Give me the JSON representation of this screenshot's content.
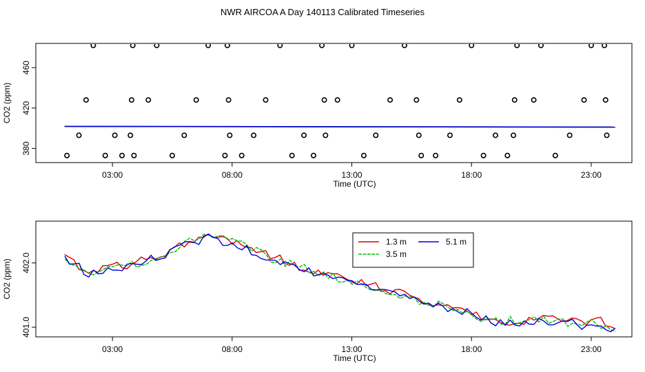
{
  "title": "NWR AIRCOA A  Day 140113  Calibrated Timeseries",
  "colors": {
    "red": "#dd0000",
    "green": "#00bb00",
    "blue": "#0000dd",
    "black": "#000000"
  },
  "chart_data": [
    {
      "type": "scatter",
      "name": "raw-co2",
      "xlabel": "Time (UTC)",
      "ylabel": "CO2 (ppm)",
      "xlim": [
        -0.2,
        24.7
      ],
      "ylim": [
        366,
        484
      ],
      "xticks": [
        3,
        8,
        13,
        18,
        23
      ],
      "xtick_labels": [
        "03:00",
        "08:00",
        "13:00",
        "18:00",
        "23:00"
      ],
      "yticks": [
        380,
        420,
        460
      ],
      "ytick_labels": [
        "380",
        "420",
        "460"
      ],
      "markers": {
        "x": [
          1.1,
          1.6,
          1.9,
          2.2,
          2.7,
          3.1,
          3.4,
          3.75,
          3.8,
          3.85,
          3.9,
          4.5,
          4.85,
          5.5,
          6.0,
          6.5,
          7.0,
          7.7,
          7.8,
          7.85,
          7.9,
          8.4,
          8.9,
          9.4,
          10.0,
          10.5,
          11.0,
          11.4,
          11.75,
          11.85,
          11.9,
          12.4,
          13.0,
          13.5,
          14.0,
          14.6,
          15.2,
          15.7,
          15.8,
          15.9,
          16.5,
          17.1,
          17.5,
          18.0,
          18.5,
          19.0,
          19.5,
          19.75,
          19.8,
          19.9,
          20.6,
          20.9,
          21.5,
          22.1,
          22.7,
          23.0,
          23.55,
          23.6,
          23.65
        ],
        "y": [
          373,
          393,
          428,
          482,
          373,
          393,
          373,
          393,
          428,
          482,
          373,
          428,
          482,
          373,
          393,
          428,
          482,
          373,
          482,
          428,
          393,
          373,
          393,
          428,
          482,
          373,
          393,
          373,
          482,
          428,
          393,
          428,
          482,
          373,
          393,
          428,
          482,
          428,
          393,
          373,
          373,
          393,
          428,
          482,
          373,
          393,
          373,
          393,
          428,
          482,
          428,
          482,
          373,
          393,
          428,
          482,
          482,
          428,
          393
        ]
      },
      "series": [
        {
          "name": "1.3 m",
          "color": "#dd0000",
          "x": [
            1,
            24
          ],
          "y": [
            401.8,
            401.1
          ]
        },
        {
          "name": "3.5 m",
          "color": "#00bb00",
          "x": [
            1,
            24
          ],
          "y": [
            401.8,
            401.1
          ]
        },
        {
          "name": "5.1 m",
          "color": "#0000dd",
          "x": [
            1,
            24
          ],
          "y": [
            401.8,
            401.1
          ]
        }
      ]
    },
    {
      "type": "line",
      "name": "co2-by-height",
      "xlabel": "Time (UTC)",
      "ylabel": "CO2 (ppm)",
      "xlim": [
        -0.2,
        24.7
      ],
      "ylim": [
        400.85,
        402.65
      ],
      "xticks": [
        3,
        8,
        13,
        18,
        23
      ],
      "xtick_labels": [
        "03:00",
        "08:00",
        "13:00",
        "18:00",
        "23:00"
      ],
      "yticks": [
        401.0,
        402.0
      ],
      "ytick_labels": [
        "401.0",
        "402.0"
      ],
      "legend": {
        "position": "top-center",
        "entries": [
          "1.3 m",
          "3.5 m",
          "5.1 m"
        ]
      },
      "series": [
        {
          "name": "1.3 m",
          "color": "#dd0000",
          "x": [
            1,
            2,
            3,
            4,
            5,
            6,
            7,
            8,
            9,
            10,
            11,
            12,
            13,
            14,
            15,
            16,
            17,
            18,
            19,
            20,
            21,
            22,
            23,
            24
          ],
          "y": [
            402.1,
            401.85,
            401.95,
            402.0,
            402.1,
            402.3,
            402.45,
            402.35,
            402.2,
            402.05,
            401.9,
            401.85,
            401.75,
            401.65,
            401.55,
            401.4,
            401.35,
            401.2,
            401.1,
            401.05,
            401.15,
            401.1,
            401.12,
            401.02
          ]
        },
        {
          "name": "3.5 m",
          "color": "#00bb00",
          "x": [
            1,
            2,
            3,
            4,
            5,
            6,
            7,
            8,
            9,
            10,
            11,
            12,
            13,
            14,
            15,
            16,
            17,
            18,
            19,
            20,
            21,
            22,
            23,
            24
          ],
          "y": [
            402.08,
            401.8,
            401.95,
            402.0,
            402.05,
            402.3,
            402.4,
            402.35,
            402.18,
            402.0,
            401.92,
            401.8,
            401.72,
            401.6,
            401.5,
            401.38,
            401.32,
            401.18,
            401.08,
            401.1,
            401.12,
            401.05,
            401.1,
            400.95
          ]
        },
        {
          "name": "5.1 m",
          "color": "#0000dd",
          "x": [
            1,
            2,
            3,
            4,
            5,
            6,
            7,
            8,
            9,
            10,
            11,
            12,
            13,
            14,
            15,
            16,
            17,
            18,
            19,
            20,
            21,
            22,
            23,
            24
          ],
          "y": [
            402.05,
            401.82,
            401.92,
            401.98,
            402.08,
            402.28,
            402.42,
            402.3,
            402.15,
            402.0,
            401.88,
            401.82,
            401.72,
            401.62,
            401.55,
            401.4,
            401.3,
            401.2,
            401.05,
            401.05,
            401.1,
            401.08,
            401.02,
            400.95
          ]
        }
      ]
    }
  ]
}
